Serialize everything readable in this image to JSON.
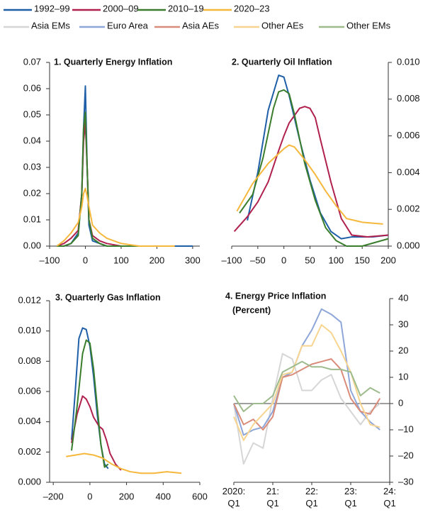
{
  "chart_data": [
    {
      "type": "line",
      "title": "1. Quarterly Energy Inflation",
      "xlim": [
        -100,
        320
      ],
      "ylim": [
        0,
        0.07
      ],
      "xticks": [
        {
          "value": -100,
          "label": "–100"
        },
        0,
        100,
        200,
        300
      ],
      "yticks": [
        {
          "value": 0,
          "label": "0.00"
        },
        0.01,
        0.02,
        0.03,
        0.04,
        0.05,
        0.06,
        0.07
      ],
      "series": [
        {
          "name": "1992–99",
          "color": "#1f5fa8",
          "x": [
            -80,
            -60,
            -40,
            -20,
            -10,
            -5,
            0,
            5,
            10,
            20,
            40,
            60,
            100,
            150,
            200,
            250,
            300
          ],
          "values": [
            0,
            0,
            0.001,
            0.005,
            0.02,
            0.045,
            0.061,
            0.03,
            0.008,
            0.002,
            0.001,
            0,
            0,
            0,
            0,
            0,
            0
          ]
        },
        {
          "name": "2000–09",
          "color": "#b0214e",
          "x": [
            -80,
            -60,
            -40,
            -20,
            -10,
            -5,
            0,
            5,
            10,
            20,
            40,
            60,
            100,
            150,
            200,
            250
          ],
          "values": [
            0,
            0.001,
            0.003,
            0.006,
            0.02,
            0.04,
            0.047,
            0.03,
            0.01,
            0.004,
            0.002,
            0.001,
            0,
            0,
            0,
            0
          ]
        },
        {
          "name": "2010–19",
          "color": "#3a7d2c",
          "x": [
            -80,
            -60,
            -40,
            -20,
            -10,
            -5,
            0,
            5,
            10,
            20,
            40,
            60,
            100,
            150,
            200,
            250
          ],
          "values": [
            0,
            0,
            0.001,
            0.004,
            0.02,
            0.045,
            0.051,
            0.03,
            0.01,
            0.003,
            0.001,
            0,
            0,
            0,
            0,
            0
          ]
        },
        {
          "name": "2020–23",
          "color": "#f5b83d",
          "x": [
            -80,
            -60,
            -40,
            -20,
            -10,
            -5,
            0,
            5,
            10,
            20,
            40,
            60,
            100,
            150,
            200,
            250
          ],
          "values": [
            0,
            0.002,
            0.005,
            0.009,
            0.015,
            0.02,
            0.022,
            0.019,
            0.015,
            0.008,
            0.005,
            0.003,
            0.001,
            0,
            0,
            0
          ]
        }
      ]
    },
    {
      "type": "line",
      "title": "2. Quarterly Oil Inflation",
      "xlim": [
        -100,
        200
      ],
      "ylim": [
        0,
        0.01
      ],
      "xticks": [
        {
          "value": -100,
          "label": "–100"
        },
        {
          "value": -50,
          "label": "–50"
        },
        0,
        50,
        100,
        150,
        200
      ],
      "yticks": [
        {
          "value": 0,
          "label": "0.000"
        },
        0.002,
        0.004,
        0.006,
        0.008,
        {
          "value": 0.01,
          "label": "0.010"
        }
      ],
      "series": [
        {
          "color": "#1f5fa8",
          "x": [
            -70,
            -50,
            -30,
            -10,
            0,
            10,
            30,
            50,
            70,
            90,
            110,
            130,
            150,
            170,
            200
          ],
          "values": [
            0.0014,
            0.004,
            0.0074,
            0.0093,
            0.0092,
            0.0082,
            0.0058,
            0.0036,
            0.0018,
            0.0008,
            0.0004,
            0.0005,
            0.0005,
            0.0005,
            0.0006
          ]
        },
        {
          "color": "#b0214e",
          "x": [
            -95,
            -70,
            -50,
            -30,
            -10,
            0,
            10,
            30,
            40,
            50,
            60,
            70,
            90,
            110,
            130,
            160,
            200
          ],
          "values": [
            0.0008,
            0.0016,
            0.0024,
            0.0035,
            0.0052,
            0.006,
            0.0067,
            0.0075,
            0.0076,
            0.0075,
            0.007,
            0.0058,
            0.0035,
            0.0015,
            0.0006,
            0.0005,
            0.0006
          ]
        },
        {
          "color": "#3a7d2c",
          "x": [
            -85,
            -60,
            -40,
            -20,
            -10,
            0,
            10,
            20,
            40,
            60,
            80,
            100,
            120,
            150,
            200
          ],
          "values": [
            0.0018,
            0.0028,
            0.0048,
            0.0075,
            0.0084,
            0.0085,
            0.0083,
            0.0072,
            0.0045,
            0.0025,
            0.001,
            0.0003,
            0,
            0,
            0.0004
          ]
        },
        {
          "color": "#f5b83d",
          "x": [
            -90,
            -60,
            -30,
            0,
            10,
            20,
            40,
            60,
            80,
            100,
            120,
            150,
            190
          ],
          "values": [
            0.0019,
            0.0034,
            0.0045,
            0.0053,
            0.0055,
            0.0054,
            0.0047,
            0.0039,
            0.003,
            0.0022,
            0.0015,
            0.0013,
            0.0012
          ]
        }
      ]
    },
    {
      "type": "line",
      "title": "3. Quarterly Gas Inflation",
      "xlim": [
        -220,
        600
      ],
      "ylim": [
        0,
        0.012
      ],
      "xticks": [
        {
          "value": -200,
          "label": "–200"
        },
        0,
        200,
        400,
        600
      ],
      "yticks": [
        {
          "value": 0,
          "label": "0.000"
        },
        0.002,
        0.004,
        0.006,
        0.008,
        {
          "value": 0.01,
          "label": "0.010"
        },
        0.012
      ],
      "series": [
        {
          "color": "#1f5fa8",
          "x": [
            -100,
            -80,
            -60,
            -40,
            -20,
            0,
            20,
            40,
            60,
            80,
            100
          ],
          "values": [
            0.0028,
            0.006,
            0.0095,
            0.0102,
            0.0101,
            0.009,
            0.007,
            0.0045,
            0.0025,
            0.0012,
            0.0009
          ]
        },
        {
          "color": "#b0214e",
          "x": [
            -100,
            -70,
            -40,
            -20,
            0,
            20,
            50,
            70,
            90,
            110,
            140,
            170
          ],
          "values": [
            0.0026,
            0.0045,
            0.0057,
            0.0055,
            0.005,
            0.0043,
            0.0037,
            0.0035,
            0.0028,
            0.0019,
            0.0012,
            0.0008
          ]
        },
        {
          "color": "#3a7d2c",
          "x": [
            -100,
            -70,
            -40,
            -20,
            0,
            20,
            40,
            60,
            80,
            100
          ],
          "values": [
            0.0021,
            0.005,
            0.0085,
            0.0094,
            0.0092,
            0.0075,
            0.005,
            0.0025,
            0.001,
            0.0012
          ]
        },
        {
          "color": "#f5b83d",
          "x": [
            -130,
            -80,
            -30,
            20,
            70,
            120,
            170,
            220,
            280,
            350,
            420,
            500
          ],
          "values": [
            0.0017,
            0.0018,
            0.0019,
            0.0018,
            0.0016,
            0.0012,
            0.0009,
            0.0007,
            0.0006,
            0.0006,
            0.0007,
            0.0006
          ]
        }
      ]
    },
    {
      "type": "line",
      "title": "4. Energy Price Inflation",
      "subtitle": "(Percent)",
      "ylim": [
        -30,
        40
      ],
      "yticks": [
        {
          "value": -30,
          "label": "–30"
        },
        {
          "value": -20,
          "label": "–20"
        },
        {
          "value": -10,
          "label": "–10"
        },
        0,
        10,
        20,
        30,
        40
      ],
      "categories": [
        "2020:\nQ1",
        null,
        null,
        null,
        "21:\nQ1",
        null,
        null,
        null,
        "22:\nQ1",
        null,
        null,
        null,
        "23:\nQ1",
        null,
        null,
        null,
        "24:\nQ1"
      ],
      "series": [
        {
          "name": "Asia EMs",
          "color": "#d6d6d6",
          "values": [
            0,
            -23,
            -15,
            -17,
            2,
            19,
            17,
            5,
            5,
            9,
            11,
            2,
            -3,
            -8,
            -3,
            0,
            null
          ]
        },
        {
          "name": "Euro Area",
          "color": "#8ea6d8",
          "values": [
            0,
            -12,
            -10,
            -9,
            -3,
            10,
            12,
            22,
            28,
            36,
            34,
            31,
            5,
            -3,
            -7,
            -10,
            null
          ]
        },
        {
          "name": "Asia AEs",
          "color": "#d98c7a",
          "values": [
            0,
            -8,
            -6,
            -10,
            -5,
            10,
            11,
            13,
            15,
            16,
            17,
            13,
            2,
            -3,
            -4,
            2,
            null
          ]
        },
        {
          "name": "Other AEs",
          "color": "#f7d590",
          "values": [
            -5,
            -14,
            -8,
            -4,
            0,
            11,
            12,
            22,
            22,
            30,
            27,
            20,
            12,
            0,
            -8,
            -9,
            null
          ]
        },
        {
          "name": "Other EMs",
          "color": "#9dbb8d",
          "values": [
            3,
            -3,
            0,
            0,
            3,
            12,
            14,
            16,
            14,
            14,
            13,
            13,
            12,
            3,
            6,
            4,
            null
          ]
        }
      ]
    }
  ]
}
